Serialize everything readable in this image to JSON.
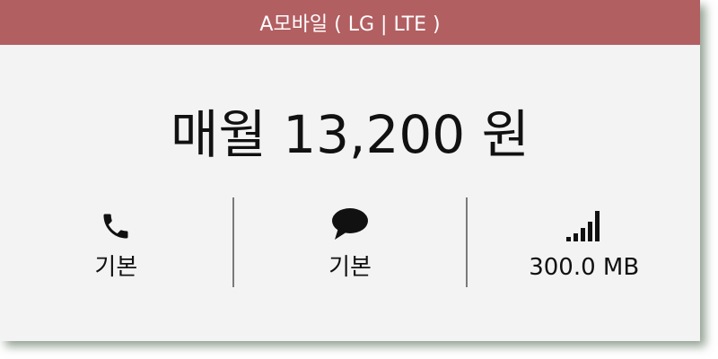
{
  "plan": {
    "title": "A모바일 ( LG | LTE )",
    "price": "매월 13,200 원"
  },
  "features": [
    {
      "icon": "phone-icon",
      "value": "기본"
    },
    {
      "icon": "message-bubble-icon",
      "value": "기본"
    },
    {
      "icon": "signal-bars-icon",
      "value": "300.0 MB"
    }
  ],
  "colors": {
    "header": "#b25f62",
    "card": "#f3f3f3",
    "shadow": "#3c553c"
  }
}
